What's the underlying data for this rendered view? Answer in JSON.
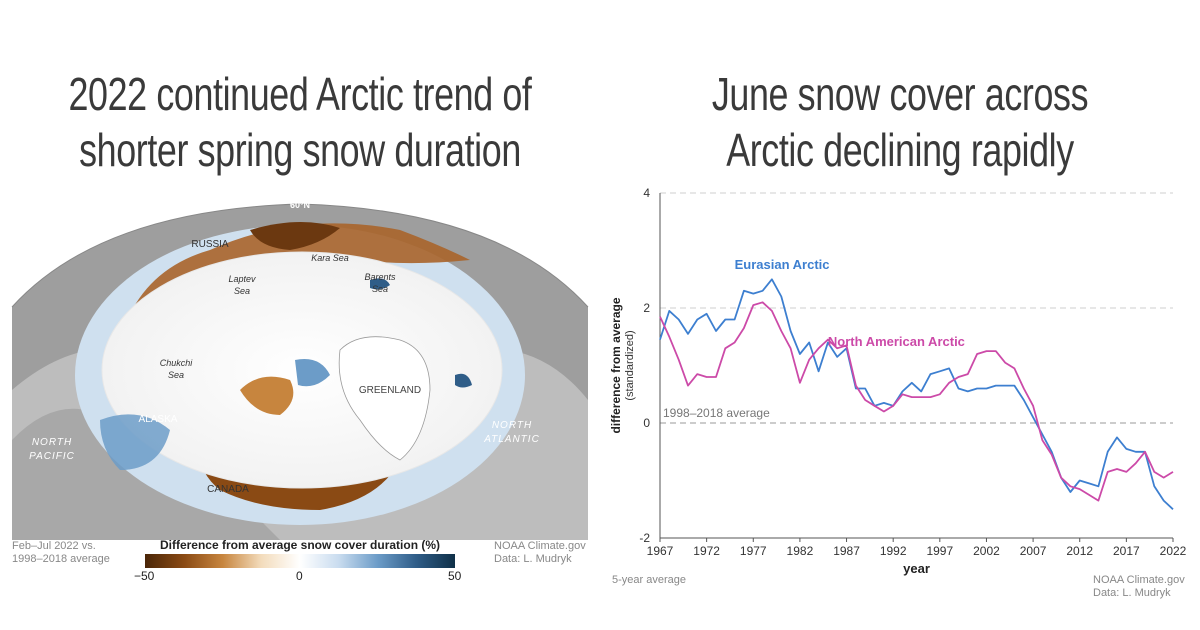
{
  "left_panel": {
    "title_line1": "2022 continued Arctic trend of",
    "title_line2": "shorter spring snow duration",
    "map_labels": {
      "lat": "60°N",
      "russia": "RUSSIA",
      "kara_sea": "Kara Sea",
      "laptev_sea": [
        "Laptev",
        "Sea"
      ],
      "barents_sea": [
        "Barents",
        "Sea"
      ],
      "chukchi_sea": [
        "Chukchi",
        "Sea"
      ],
      "greenland": "GREENLAND",
      "alaska": "ALASKA",
      "canada": "CANADA",
      "north_pacific": [
        "NORTH",
        "PACIFIC"
      ],
      "north_atlantic": [
        "NORTH",
        "ATLANTIC"
      ]
    },
    "period_note": [
      "Feb–Jul 2022 vs.",
      "1998–2018 average"
    ],
    "credit": [
      "NOAA Climate.gov",
      "Data: L. Mudryk"
    ],
    "legend": {
      "title": "Difference from average snow cover duration (%)",
      "min_label": "−50",
      "mid_label": "0",
      "max_label": "50",
      "colors": [
        "#4a2608",
        "#8a4a14",
        "#c7853e",
        "#f3dcbc",
        "#ffffff",
        "#c9dcef",
        "#6c9cc8",
        "#2f5d88",
        "#0f3048"
      ]
    }
  },
  "right_panel": {
    "title_line1": "June snow cover across",
    "title_line2": "Arctic declining rapidly",
    "footnote": "5-year average",
    "credit": [
      "NOAA Climate.gov",
      "Data: L. Mudryk"
    ]
  },
  "chart_data": {
    "type": "line",
    "title": "June snow cover across Arctic declining rapidly",
    "xlabel": "year",
    "ylabel": [
      "difference from average",
      "(standardized)"
    ],
    "xlim": [
      1967,
      2022
    ],
    "ylim": [
      -2,
      4
    ],
    "yticks": [
      -2,
      0,
      2,
      4
    ],
    "xticks": [
      1967,
      1972,
      1977,
      1982,
      1987,
      1992,
      1997,
      2002,
      2007,
      2012,
      2017,
      2022
    ],
    "reference_line": {
      "value": 0,
      "label": "1998–2018 average"
    },
    "x": [
      1967,
      1968,
      1969,
      1970,
      1971,
      1972,
      1973,
      1974,
      1975,
      1976,
      1977,
      1978,
      1979,
      1980,
      1981,
      1982,
      1983,
      1984,
      1985,
      1986,
      1987,
      1988,
      1989,
      1990,
      1991,
      1992,
      1993,
      1994,
      1995,
      1996,
      1997,
      1998,
      1999,
      2000,
      2001,
      2002,
      2003,
      2004,
      2005,
      2006,
      2007,
      2008,
      2009,
      2010,
      2011,
      2012,
      2013,
      2014,
      2015,
      2016,
      2017,
      2018,
      2019,
      2020,
      2021,
      2022
    ],
    "series": [
      {
        "name": "Eurasian Arctic",
        "color": "#3d7fd0",
        "values": [
          1.45,
          1.95,
          1.8,
          1.55,
          1.8,
          1.9,
          1.6,
          1.8,
          1.8,
          2.3,
          2.25,
          2.3,
          2.5,
          2.2,
          1.6,
          1.2,
          1.4,
          0.9,
          1.4,
          1.15,
          1.3,
          0.6,
          0.6,
          0.3,
          0.35,
          0.3,
          0.55,
          0.7,
          0.55,
          0.85,
          0.9,
          0.95,
          0.6,
          0.55,
          0.6,
          0.6,
          0.65,
          0.65,
          0.65,
          0.4,
          0.1,
          -0.2,
          -0.5,
          -0.95,
          -1.2,
          -1.0,
          -1.05,
          -1.1,
          -0.5,
          -0.25,
          -0.45,
          -0.5,
          -0.5,
          -1.1,
          -1.35,
          -1.5
        ]
      },
      {
        "name": "North American Arctic",
        "color": "#cc4aa8",
        "values": [
          1.85,
          1.5,
          1.1,
          0.65,
          0.85,
          0.8,
          0.8,
          1.3,
          1.4,
          1.65,
          2.05,
          2.1,
          1.95,
          1.6,
          1.3,
          0.7,
          1.1,
          1.3,
          1.45,
          1.3,
          1.35,
          0.65,
          0.4,
          0.3,
          0.2,
          0.3,
          0.5,
          0.45,
          0.45,
          0.45,
          0.5,
          0.7,
          0.8,
          0.85,
          1.2,
          1.25,
          1.25,
          1.05,
          0.95,
          0.6,
          0.3,
          -0.3,
          -0.55,
          -0.95,
          -1.1,
          -1.15,
          -1.25,
          -1.35,
          -0.85,
          -0.8,
          -0.85,
          -0.7,
          -0.5,
          -0.85,
          -0.95,
          -0.85
        ]
      }
    ],
    "series_labels": [
      "Eurasian Arctic",
      "North American Arctic"
    ]
  }
}
